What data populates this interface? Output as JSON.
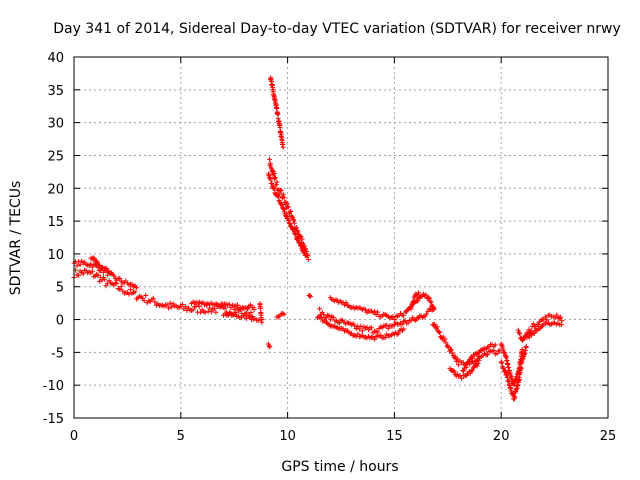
{
  "chart_data": {
    "type": "scatter",
    "title": "Day 341 of 2014, Sidereal Day-to-day VTEC variation (SDTVAR) for receiver nrwy",
    "xlabel": "GPS time / hours",
    "ylabel": "SDTVAR / TECUs",
    "xlim": [
      0,
      25
    ],
    "ylim": [
      -15,
      40
    ],
    "xticks": [
      0,
      5,
      10,
      15,
      20,
      25
    ],
    "yticks": [
      -15,
      -10,
      -5,
      0,
      5,
      10,
      15,
      20,
      25,
      30,
      35,
      40
    ],
    "grid": true,
    "marker": "+",
    "series": [
      {
        "name": "SDTVAR",
        "color": "#ff0000",
        "bands": [
          {
            "pts": [
              [
                0.0,
                7.0
              ],
              [
                0.5,
                7.2
              ],
              [
                1.0,
                6.8
              ],
              [
                1.5,
                5.6
              ],
              [
                2.0,
                5.0
              ],
              [
                2.5,
                4.2
              ],
              [
                3.0,
                3.6
              ],
              [
                3.5,
                3.0
              ],
              [
                4.0,
                2.4
              ],
              [
                4.5,
                2.0
              ],
              [
                5.0,
                1.8
              ],
              [
                5.5,
                1.6
              ],
              [
                6.0,
                1.6
              ],
              [
                6.5,
                1.6
              ],
              [
                7.0,
                1.4
              ],
              [
                7.5,
                1.4
              ],
              [
                8.0,
                1.2
              ],
              [
                8.5,
                1.0
              ]
            ],
            "spread": 1.2
          },
          {
            "pts": [
              [
                0.0,
                8.5
              ],
              [
                0.5,
                8.6
              ],
              [
                1.0,
                8.2
              ],
              [
                1.5,
                7.2
              ],
              [
                2.0,
                6.2
              ],
              [
                2.5,
                5.5
              ],
              [
                3.0,
                4.8
              ]
            ],
            "spread": 0.7
          },
          {
            "pts": [
              [
                0.8,
                9.5
              ],
              [
                1.2,
                8.2
              ],
              [
                1.8,
                7.0
              ]
            ],
            "spread": 0.5
          },
          {
            "pts": [
              [
                5.5,
                2.6
              ],
              [
                6.5,
                2.4
              ],
              [
                7.5,
                2.0
              ],
              [
                8.5,
                2.0
              ]
            ],
            "spread": 0.5
          },
          {
            "pts": [
              [
                7.0,
                0.8
              ],
              [
                8.0,
                0.4
              ],
              [
                8.7,
                0.0
              ]
            ],
            "spread": 0.5
          },
          {
            "pts": [
              [
                8.7,
                2.5
              ],
              [
                8.8,
                -0.5
              ]
            ],
            "spread": 0.4
          },
          {
            "pts": [
              [
                9.2,
                36.8
              ],
              [
                9.4,
                33.5
              ],
              [
                9.6,
                30.0
              ],
              [
                9.8,
                26.0
              ]
            ],
            "spread": 0.6
          },
          {
            "pts": [
              [
                9.15,
                24.0
              ],
              [
                9.5,
                20.5
              ],
              [
                9.9,
                18.0
              ],
              [
                10.2,
                15.5
              ],
              [
                10.6,
                12.5
              ],
              [
                11.0,
                9.0
              ]
            ],
            "spread": 1.1
          },
          {
            "pts": [
              [
                9.1,
                22.0
              ],
              [
                9.4,
                19.5
              ],
              [
                9.8,
                17.0
              ],
              [
                10.1,
                14.5
              ],
              [
                10.5,
                12.0
              ],
              [
                10.9,
                9.5
              ]
            ],
            "spread": 0.5
          },
          {
            "pts": [
              [
                9.5,
                0.5
              ],
              [
                9.9,
                1.0
              ]
            ],
            "spread": 0.3
          },
          {
            "pts": [
              [
                9.1,
                -3.8
              ],
              [
                9.2,
                -4.3
              ]
            ],
            "spread": 0.3
          },
          {
            "pts": [
              [
                11.0,
                3.6
              ],
              [
                11.1,
                3.6
              ]
            ],
            "spread": 0.2
          },
          {
            "pts": [
              [
                11.5,
                1.2
              ],
              [
                12.0,
                0.2
              ],
              [
                12.5,
                -0.4
              ],
              [
                13.0,
                -1.0
              ],
              [
                13.5,
                -1.4
              ],
              [
                14.0,
                -1.6
              ],
              [
                14.5,
                -1.3
              ],
              [
                15.0,
                -0.8
              ],
              [
                15.5,
                -0.4
              ],
              [
                16.0,
                0.0
              ],
              [
                16.5,
                1.0
              ],
              [
                16.9,
                1.8
              ]
            ],
            "spread": 0.9
          },
          {
            "pts": [
              [
                12.0,
                3.4
              ],
              [
                13.0,
                2.0
              ],
              [
                14.0,
                1.0
              ],
              [
                15.0,
                0.2
              ],
              [
                15.5,
                1.0
              ],
              [
                16.0,
                2.6
              ],
              [
                16.3,
                3.8
              ],
              [
                16.6,
                3.2
              ],
              [
                16.9,
                1.5
              ]
            ],
            "spread": 0.6
          },
          {
            "pts": [
              [
                11.4,
                0.5
              ],
              [
                12.0,
                -0.8
              ],
              [
                13.0,
                -2.2
              ],
              [
                14.0,
                -2.8
              ],
              [
                15.0,
                -2.3
              ],
              [
                15.5,
                -1.2
              ]
            ],
            "spread": 0.5
          },
          {
            "pts": [
              [
                15.8,
                2.0
              ],
              [
                16.0,
                3.8
              ],
              [
                16.2,
                4.0
              ]
            ],
            "spread": 0.4
          },
          {
            "pts": [
              [
                16.8,
                -0.5
              ],
              [
                17.2,
                -2.5
              ],
              [
                17.5,
                -4.0
              ],
              [
                17.8,
                -5.5
              ],
              [
                18.0,
                -6.5
              ],
              [
                18.3,
                -7.0
              ],
              [
                18.6,
                -6.5
              ],
              [
                19.0,
                -5.5
              ],
              [
                19.5,
                -5.0
              ],
              [
                19.8,
                -5.0
              ],
              [
                20.0,
                -4.5
              ]
            ],
            "spread": 0.8
          },
          {
            "pts": [
              [
                17.6,
                -7.5
              ],
              [
                18.0,
                -8.8
              ],
              [
                18.3,
                -8.8
              ],
              [
                18.7,
                -7.5
              ],
              [
                19.0,
                -6.2
              ]
            ],
            "spread": 0.6
          },
          {
            "pts": [
              [
                18.2,
                -7.8
              ],
              [
                18.7,
                -5.5
              ],
              [
                19.1,
                -4.5
              ],
              [
                19.5,
                -4.0
              ],
              [
                19.8,
                -3.8
              ]
            ],
            "spread": 0.5
          },
          {
            "pts": [
              [
                20.0,
                -6.5
              ],
              [
                20.2,
                -8.0
              ],
              [
                20.4,
                -10.0
              ],
              [
                20.6,
                -12.0
              ],
              [
                20.8,
                -9.5
              ],
              [
                21.0,
                -6.0
              ],
              [
                21.2,
                -4.0
              ]
            ],
            "spread": 0.7
          },
          {
            "pts": [
              [
                20.0,
                -3.8
              ],
              [
                20.2,
                -5.5
              ],
              [
                20.4,
                -8.0
              ],
              [
                20.6,
                -10.0
              ],
              [
                20.8,
                -8.0
              ],
              [
                21.0,
                -4.5
              ]
            ],
            "spread": 0.4
          },
          {
            "pts": [
              [
                20.8,
                -1.8
              ],
              [
                21.0,
                -3.2
              ],
              [
                21.2,
                -2.2
              ],
              [
                21.5,
                -1.0
              ],
              [
                21.8,
                -0.3
              ],
              [
                22.2,
                0.4
              ],
              [
                22.6,
                0.6
              ],
              [
                22.9,
                0.0
              ]
            ],
            "spread": 0.7
          },
          {
            "pts": [
              [
                21.2,
                -2.8
              ],
              [
                21.6,
                -1.8
              ],
              [
                22.0,
                -0.8
              ],
              [
                22.5,
                -0.5
              ],
              [
                22.9,
                -0.8
              ]
            ],
            "spread": 0.4
          }
        ]
      }
    ]
  }
}
